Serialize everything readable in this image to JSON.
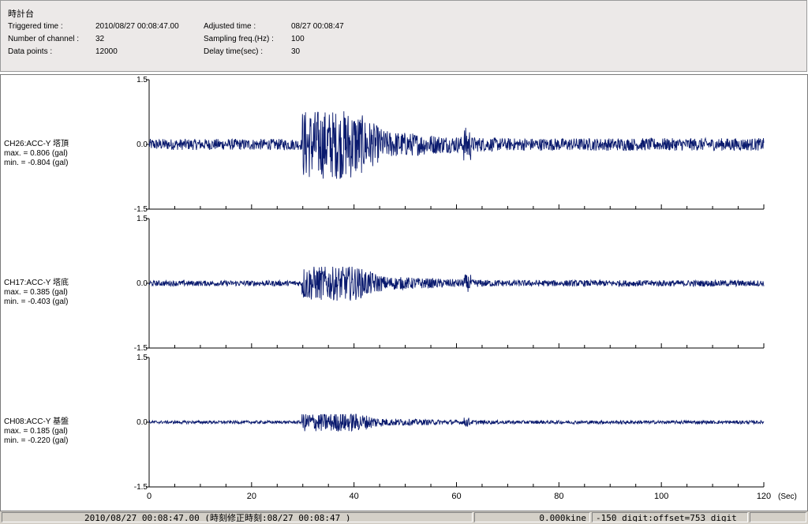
{
  "header": {
    "title": "時計台",
    "triggered_label": "Triggered time :",
    "triggered_value": "2010/08/27 00:08:47.00",
    "channels_label": "Number of channel :",
    "channels_value": "32",
    "datapoints_label": "Data points :",
    "datapoints_value": "12000",
    "adjusted_label": "Adjusted time :",
    "adjusted_value": "08/27 00:08:47",
    "sampling_label": "Sampling freq.(Hz) :",
    "sampling_value": "100",
    "delay_label": "Delay time(sec) :",
    "delay_value": "30"
  },
  "channels": [
    {
      "name": "CH26:ACC-Y 塔頂",
      "max": "max. = 0.806 (gal)",
      "min": "min. = -0.804 (gal)"
    },
    {
      "name": "CH17:ACC-Y 塔底",
      "max": "max. = 0.385 (gal)",
      "min": "min. = -0.403 (gal)"
    },
    {
      "name": "CH08:ACC-Y 基盤",
      "max": "max. = 0.185 (gal)",
      "min": "min. = -0.220 (gal)"
    }
  ],
  "status": {
    "time": "2010/08/27 00:08:47.00  (時刻修正時刻:08/27 00:08:47  )",
    "velocity": "0.000kine",
    "offset": "-150 digit:offset=753 digit"
  },
  "chart_data": {
    "type": "line",
    "x_unit": "(Sec)",
    "xlim": [
      0,
      120
    ],
    "x_ticks": [
      "0",
      "20",
      "40",
      "60",
      "80",
      "100",
      "120"
    ],
    "y_ticks": [
      "1.5",
      "0.0",
      "-1.5"
    ],
    "ylim": [
      -1.5,
      1.5
    ],
    "line_color": "#0a1a6e",
    "series": [
      {
        "channel": "CH26",
        "max": 0.806,
        "min": -0.804
      },
      {
        "channel": "CH17",
        "max": 0.385,
        "min": -0.403
      },
      {
        "channel": "CH08",
        "max": 0.185,
        "min": -0.22
      }
    ]
  }
}
